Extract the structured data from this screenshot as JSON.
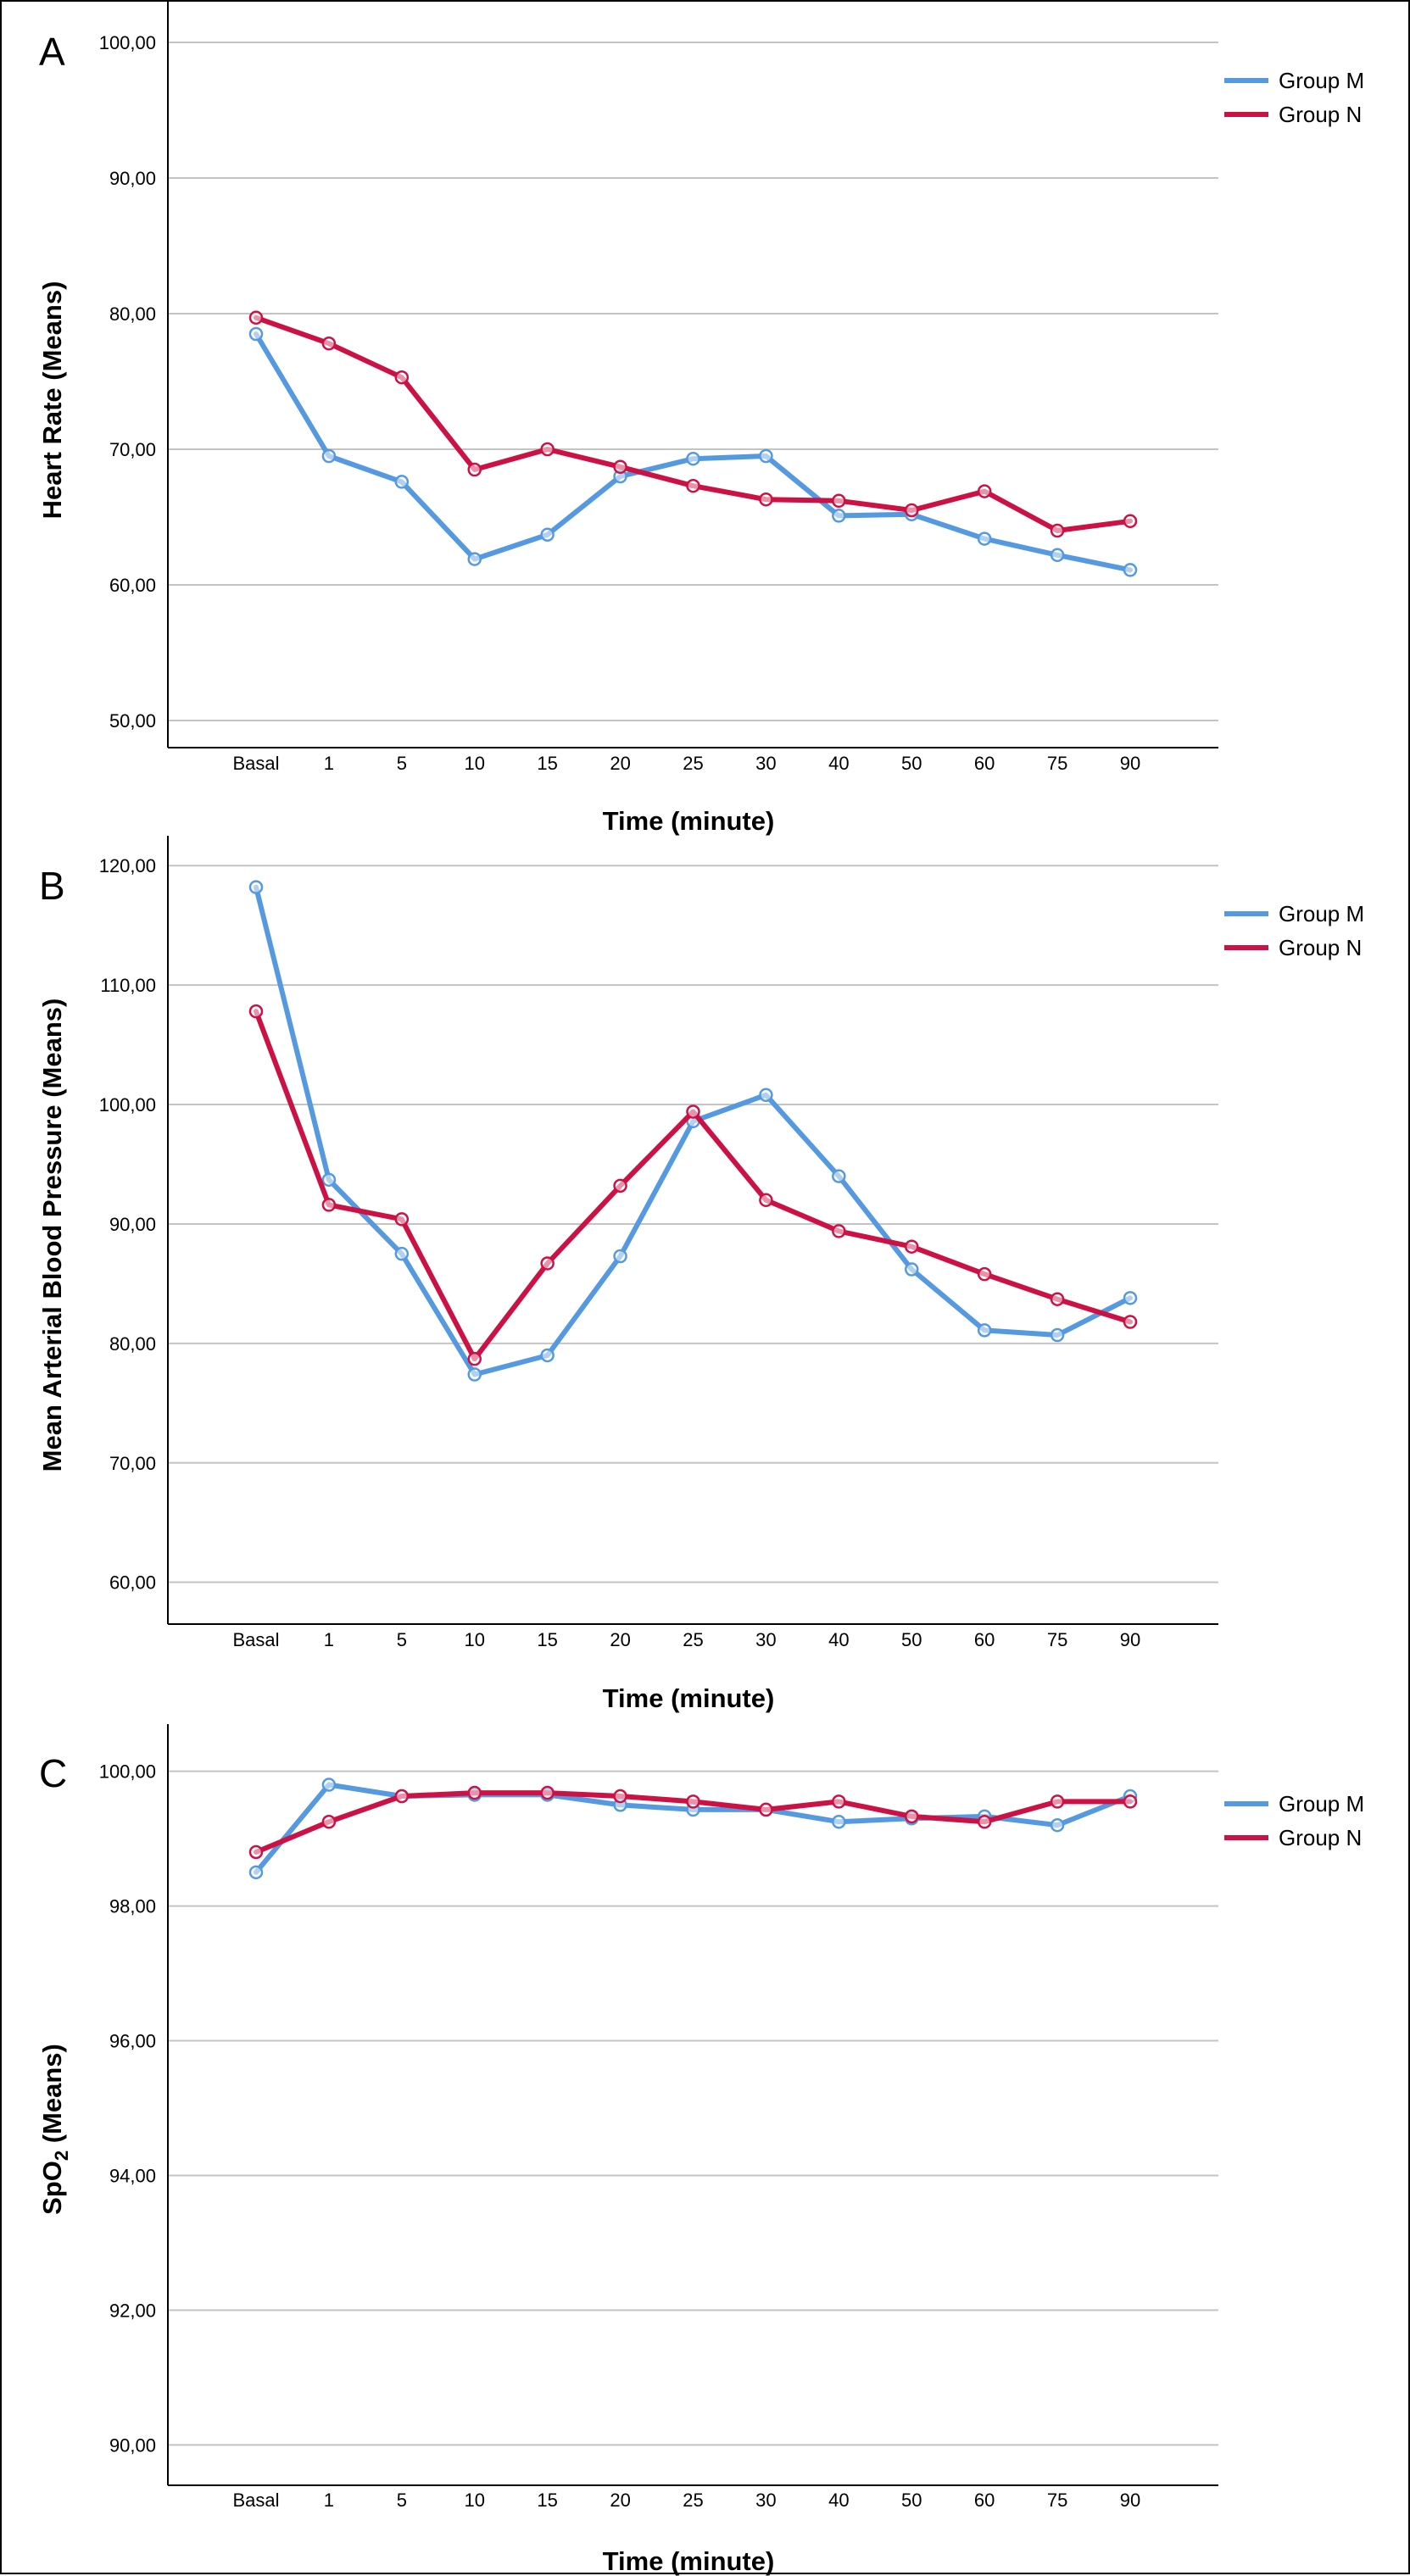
{
  "chart_data": [
    {
      "type": "line",
      "panel": "A",
      "categories": [
        "Basal",
        "1",
        "5",
        "10",
        "15",
        "20",
        "25",
        "30",
        "40",
        "50",
        "60",
        "75",
        "90"
      ],
      "series": [
        {
          "name": "Group M",
          "color": "#5599e0",
          "values": [
            78.5,
            69.5,
            67.6,
            61.9,
            63.7,
            68.0,
            69.3,
            69.5,
            65.1,
            65.2,
            63.4,
            62.2,
            61.1
          ]
        },
        {
          "name": "Group N",
          "color": "#cc1144",
          "values": [
            79.7,
            77.8,
            75.3,
            68.5,
            70.0,
            68.7,
            67.3,
            66.3,
            66.2,
            65.5,
            66.9,
            64.0,
            64.7
          ]
        }
      ],
      "xlabel": "Time (minute)",
      "ylabel": "Heart Rate (Means)",
      "ylim": [
        48,
        103
      ],
      "yticks": [
        "100,00",
        "90,00",
        "80,00",
        "70,00",
        "60,00",
        "50,00"
      ],
      "grid": true,
      "legend_position": "top-right"
    },
    {
      "type": "line",
      "panel": "B",
      "categories": [
        "Basal",
        "1",
        "5",
        "10",
        "15",
        "20",
        "25",
        "30",
        "40",
        "50",
        "60",
        "75",
        "90"
      ],
      "series": [
        {
          "name": "Group M",
          "color": "#5599e0",
          "values": [
            118.2,
            93.7,
            87.5,
            77.4,
            79.0,
            87.3,
            98.6,
            100.8,
            94.0,
            86.2,
            81.1,
            80.7,
            83.8
          ]
        },
        {
          "name": "Group N",
          "color": "#cc1144",
          "values": [
            107.8,
            91.6,
            90.4,
            78.7,
            86.7,
            93.2,
            99.4,
            92.0,
            89.4,
            88.1,
            85.8,
            83.7,
            81.8
          ]
        }
      ],
      "xlabel": "Time (minute)",
      "ylabel": "Mean Arterial Blood Pressure (Means)",
      "ylim": [
        56.5,
        122.5
      ],
      "yticks": [
        "120,00",
        "110,00",
        "100,00",
        "90,00",
        "80,00",
        "70,00",
        "60,00"
      ],
      "grid": true,
      "legend_position": "top-right"
    },
    {
      "type": "line",
      "panel": "C",
      "categories": [
        "Basal",
        "1",
        "5",
        "10",
        "15",
        "20",
        "25",
        "30",
        "40",
        "50",
        "60",
        "75",
        "90"
      ],
      "series": [
        {
          "name": "Group M",
          "color": "#5599e0",
          "values": [
            98.5,
            99.8,
            99.63,
            99.65,
            99.65,
            99.5,
            99.43,
            99.43,
            99.25,
            99.3,
            99.33,
            99.2,
            99.63
          ]
        },
        {
          "name": "Group N",
          "color": "#cc1144",
          "values": [
            98.8,
            99.25,
            99.63,
            99.68,
            99.68,
            99.63,
            99.55,
            99.43,
            99.55,
            99.33,
            99.25,
            99.55,
            99.55
          ]
        }
      ],
      "xlabel": "Time (minute)",
      "ylabel_parts": [
        "SpO",
        "2",
        " (Means)"
      ],
      "ylim": [
        89.4,
        100.7
      ],
      "yticks": [
        "100,00",
        "98,00",
        "96,00",
        "94,00",
        "92,00",
        "90,00"
      ],
      "grid": true,
      "legend_position": "top-right"
    }
  ]
}
